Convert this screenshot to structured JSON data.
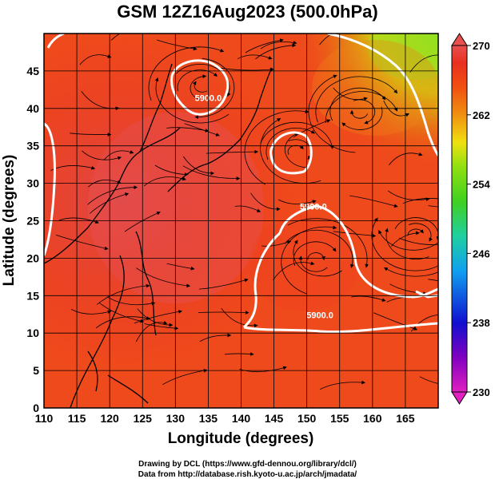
{
  "title": "GSM 12Z16Aug2023 (500.0hPa)",
  "x_axis": {
    "label": "Longitude (degrees)",
    "range": [
      110,
      170
    ],
    "ticks": [
      110,
      115,
      120,
      125,
      130,
      135,
      140,
      145,
      150,
      155,
      160,
      165
    ]
  },
  "y_axis": {
    "label": "Latitude  (degrees)",
    "range": [
      0,
      50
    ],
    "ticks": [
      0,
      5,
      10,
      15,
      20,
      25,
      30,
      35,
      40,
      45
    ]
  },
  "colorbar": {
    "min": 230,
    "max": 270,
    "ticks": [
      230,
      238,
      246,
      254,
      262,
      270
    ],
    "colors": [
      "#e020c0",
      "#8000c0",
      "#1010d0",
      "#10a0f0",
      "#20d0a0",
      "#40d020",
      "#90e010",
      "#f0e010",
      "#f09010",
      "#f05010",
      "#e83020",
      "#e85050"
    ]
  },
  "contours": [
    {
      "label": "5900.0",
      "lon": 151,
      "lat": 26.5
    },
    {
      "label": "5900.0",
      "lon": 135,
      "lat": 41
    },
    {
      "label": "5900.0",
      "lon": 152,
      "lat": 12
    }
  ],
  "credits": [
    "Drawing by DCL (https://www.gfd-dennou.org/library/dcl/)",
    "Data from http://database.rish.kyoto-u.ac.jp/arch/jmadata/"
  ]
}
